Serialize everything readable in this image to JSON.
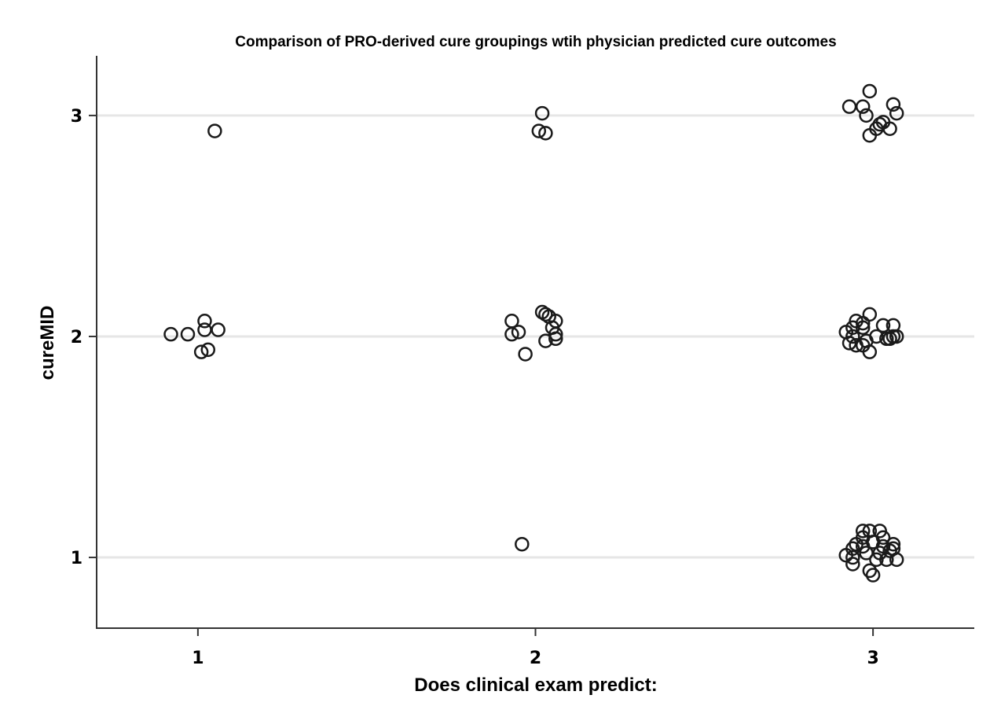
{
  "chart_data": {
    "type": "scatter",
    "title": "Comparison of PRO-derived cure groupings wtih physician predicted cure outcomes",
    "xlabel": "Does clinical exam predict:",
    "ylabel": "cureMID",
    "xlim": [
      0.7,
      3.3
    ],
    "ylim": [
      0.68,
      3.27
    ],
    "xticks": [
      1,
      2,
      3
    ],
    "yticks": [
      1,
      2,
      3
    ],
    "grid": "horizontal",
    "marker": "hollow-circle",
    "marker_color": "#1a1a1a",
    "grid_color": "#e6e6e6",
    "points": [
      {
        "x": 1.05,
        "y": 2.93
      },
      {
        "x": 0.92,
        "y": 2.01
      },
      {
        "x": 0.97,
        "y": 2.01
      },
      {
        "x": 1.02,
        "y": 2.07
      },
      {
        "x": 1.02,
        "y": 2.03
      },
      {
        "x": 1.06,
        "y": 2.03
      },
      {
        "x": 1.01,
        "y": 1.93
      },
      {
        "x": 1.03,
        "y": 1.94
      },
      {
        "x": 2.02,
        "y": 3.01
      },
      {
        "x": 2.01,
        "y": 2.93
      },
      {
        "x": 2.03,
        "y": 2.92
      },
      {
        "x": 1.93,
        "y": 2.07
      },
      {
        "x": 1.93,
        "y": 2.01
      },
      {
        "x": 1.95,
        "y": 2.02
      },
      {
        "x": 2.02,
        "y": 2.11
      },
      {
        "x": 2.03,
        "y": 2.1
      },
      {
        "x": 2.04,
        "y": 2.09
      },
      {
        "x": 2.06,
        "y": 2.07
      },
      {
        "x": 2.05,
        "y": 2.04
      },
      {
        "x": 2.06,
        "y": 2.01
      },
      {
        "x": 2.06,
        "y": 1.99
      },
      {
        "x": 2.03,
        "y": 1.98
      },
      {
        "x": 1.97,
        "y": 1.92
      },
      {
        "x": 1.96,
        "y": 1.06
      },
      {
        "x": 2.99,
        "y": 3.11
      },
      {
        "x": 2.93,
        "y": 3.04
      },
      {
        "x": 2.97,
        "y": 3.04
      },
      {
        "x": 3.06,
        "y": 3.05
      },
      {
        "x": 2.98,
        "y": 3.0
      },
      {
        "x": 3.07,
        "y": 3.01
      },
      {
        "x": 3.02,
        "y": 2.96
      },
      {
        "x": 3.03,
        "y": 2.97
      },
      {
        "x": 3.01,
        "y": 2.94
      },
      {
        "x": 3.05,
        "y": 2.94
      },
      {
        "x": 2.99,
        "y": 2.91
      },
      {
        "x": 2.99,
        "y": 2.1
      },
      {
        "x": 2.95,
        "y": 2.07
      },
      {
        "x": 2.97,
        "y": 2.06
      },
      {
        "x": 2.94,
        "y": 2.04
      },
      {
        "x": 2.97,
        "y": 2.04
      },
      {
        "x": 3.03,
        "y": 2.05
      },
      {
        "x": 3.06,
        "y": 2.05
      },
      {
        "x": 2.92,
        "y": 2.02
      },
      {
        "x": 2.94,
        "y": 2.0
      },
      {
        "x": 3.01,
        "y": 2.0
      },
      {
        "x": 3.04,
        "y": 1.99
      },
      {
        "x": 3.06,
        "y": 2.0
      },
      {
        "x": 3.07,
        "y": 2.0
      },
      {
        "x": 2.93,
        "y": 1.97
      },
      {
        "x": 2.95,
        "y": 1.96
      },
      {
        "x": 2.98,
        "y": 1.98
      },
      {
        "x": 2.97,
        "y": 1.96
      },
      {
        "x": 2.99,
        "y": 1.93
      },
      {
        "x": 3.05,
        "y": 1.99
      },
      {
        "x": 2.97,
        "y": 1.12
      },
      {
        "x": 2.99,
        "y": 1.12
      },
      {
        "x": 3.02,
        "y": 1.12
      },
      {
        "x": 2.97,
        "y": 1.09
      },
      {
        "x": 3.03,
        "y": 1.09
      },
      {
        "x": 2.95,
        "y": 1.06
      },
      {
        "x": 2.97,
        "y": 1.05
      },
      {
        "x": 3.0,
        "y": 1.07
      },
      {
        "x": 3.03,
        "y": 1.05
      },
      {
        "x": 3.06,
        "y": 1.06
      },
      {
        "x": 2.94,
        "y": 1.04
      },
      {
        "x": 3.05,
        "y": 1.03
      },
      {
        "x": 3.06,
        "y": 1.04
      },
      {
        "x": 2.92,
        "y": 1.01
      },
      {
        "x": 2.98,
        "y": 1.02
      },
      {
        "x": 3.02,
        "y": 1.02
      },
      {
        "x": 2.94,
        "y": 1.0
      },
      {
        "x": 3.01,
        "y": 0.99
      },
      {
        "x": 3.04,
        "y": 0.99
      },
      {
        "x": 3.07,
        "y": 0.99
      },
      {
        "x": 2.94,
        "y": 0.97
      },
      {
        "x": 2.99,
        "y": 0.94
      },
      {
        "x": 3.0,
        "y": 0.92
      }
    ]
  }
}
